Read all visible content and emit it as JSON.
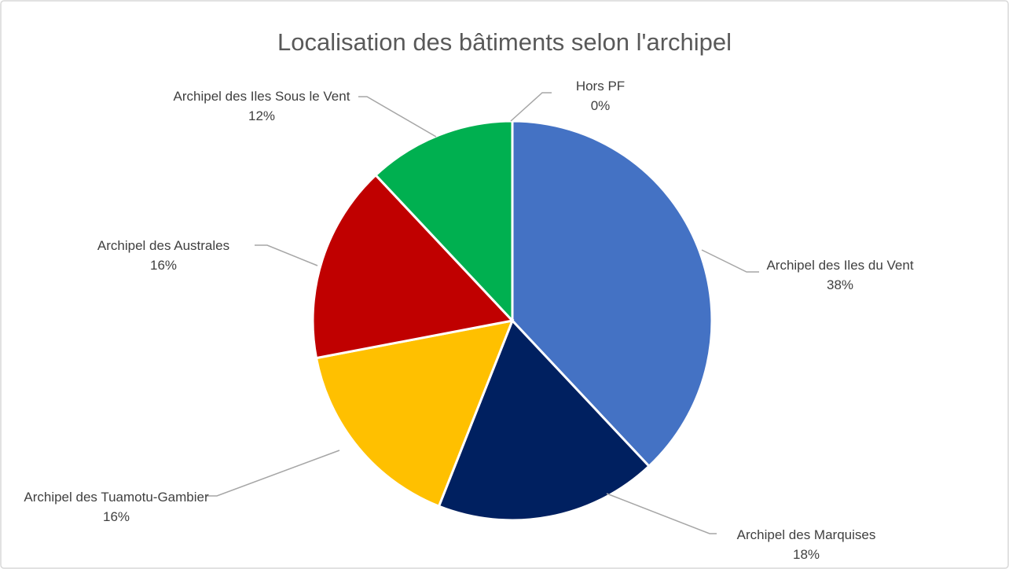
{
  "chart_data": {
    "type": "pie",
    "title": "Localisation des bâtiments selon l'archipel",
    "categories": [
      "Archipel des Iles du Vent",
      "Archipel des Marquises",
      "Archipel des Tuamotu-Gambier",
      "Archipel des Australes",
      "Archipel des Iles Sous le Vent",
      "Hors PF"
    ],
    "values": [
      38,
      18,
      16,
      16,
      12,
      0
    ],
    "value_labels": [
      "38%",
      "18%",
      "16%",
      "16%",
      "12%",
      "0%"
    ],
    "colors": [
      "#4472c4",
      "#002060",
      "#ffc000",
      "#c00000",
      "#00b050",
      "#7030a0"
    ]
  }
}
